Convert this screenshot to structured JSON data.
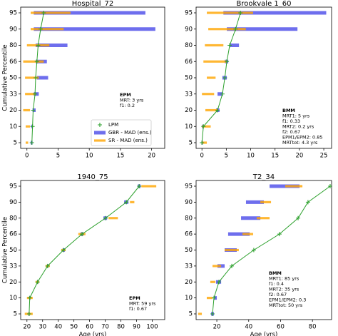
{
  "chart_data": [
    {
      "type": "percentile",
      "title": "Hospital_72",
      "ylabel": "Cumulative Percentile",
      "categories": [
        5,
        10,
        20,
        33,
        50,
        66,
        80,
        90,
        95
      ],
      "xlim": [
        -1,
        22.1
      ],
      "xticks": [
        0,
        5,
        10,
        15,
        20
      ],
      "series": [
        {
          "name": "LPM",
          "color": "#2ca02c",
          "values": [
            0.8,
            0.9,
            1.0,
            1.3,
            1.4,
            1.6,
            1.8,
            2.2,
            2.7
          ]
        },
        {
          "name": "GBR - MAD (ens.)",
          "color": "#4a4ae8",
          "low": [
            0.6,
            0.7,
            0.9,
            1.1,
            1.6,
            1.4,
            1.4,
            1.1,
            1.1
          ],
          "high": [
            0.9,
            0.9,
            1.4,
            1.9,
            3.4,
            3.2,
            6.5,
            20.6,
            19.0
          ]
        },
        {
          "name": "SR - MAD (ens.)",
          "color": "#ffa500",
          "low": [
            -0.2,
            -0.2,
            -0.6,
            -0.3,
            -0.3,
            -0.6,
            0.0,
            0.6,
            0.6
          ],
          "high": [
            0.2,
            0.5,
            0.5,
            1.4,
            1.9,
            2.7,
            3.6,
            5.9,
            7.0
          ]
        }
      ],
      "annotation": [
        "EPM",
        "MRT: 3 yrs",
        "f1: 0.2"
      ],
      "legend": "center right"
    },
    {
      "type": "percentile",
      "title": "Brookvale 1_60",
      "categories": [
        5,
        10,
        20,
        33,
        50,
        66,
        80,
        90,
        95
      ],
      "xlim": [
        -1.2,
        26.6
      ],
      "xticks": [
        0,
        5,
        10,
        15,
        20,
        25
      ],
      "series": [
        {
          "color": "#2ca02c",
          "values": [
            0.0,
            0.3,
            3.2,
            4.2,
            4.7,
            5.1,
            5.7,
            6.9,
            7.9
          ]
        },
        {
          "color": "#4a4ae8",
          "low": [
            -0.1,
            0.0,
            2.9,
            3.2,
            4.2,
            4.7,
            5.7,
            5.1,
            4.4
          ],
          "high": [
            0.2,
            0.3,
            3.6,
            4.2,
            5.1,
            5.4,
            7.6,
            19.6,
            25.5
          ]
        },
        {
          "color": "#ffa500",
          "low": [
            0.0,
            0.0,
            0.7,
            0.0,
            1.0,
            0.3,
            0.6,
            1.3,
            1.0
          ],
          "high": [
            1.0,
            1.8,
            3.2,
            2.5,
            2.8,
            5.1,
            4.4,
            9.0,
            10.5
          ]
        }
      ],
      "annotation": [
        "BMM",
        "MRT1: 5 yrs",
        "f1: 0.33",
        "MRT2: 0.2 yrs",
        "f2: 0.67",
        "EPM1/EPM2: 0.85",
        "MRTtot: 4.3 yrs"
      ]
    },
    {
      "type": "percentile",
      "title": "1940_75",
      "ylabel": "Cumulative Percentile",
      "xlabel": "Age (yrs)",
      "categories": [
        5,
        10,
        20,
        33,
        50,
        66,
        80,
        90,
        95
      ],
      "xlim": [
        16,
        108
      ],
      "xticks": [
        20,
        30,
        40,
        50,
        60,
        70,
        80,
        90,
        100
      ],
      "series": [
        {
          "color": "#2ca02c",
          "values": [
            21.4,
            21.8,
            26.8,
            33.2,
            43.3,
            55.2,
            70.2,
            83.5,
            91.7
          ]
        },
        {
          "color": "#4a4ae8",
          "low": [
            20.9,
            21.4,
            26.4,
            32.8,
            42.8,
            54.2,
            68.9,
            82.1,
            90.8
          ],
          "high": [
            21.8,
            22.3,
            27.3,
            33.7,
            44.2,
            56.1,
            71.2,
            84.8,
            92.6
          ]
        },
        {
          "color": "#ffa500",
          "low": [
            18.6,
            20.0,
            25.5,
            31.9,
            41.9,
            52.8,
            72.1,
            85.8,
            93.1
          ],
          "high": [
            23.7,
            23.7,
            27.8,
            34.6,
            44.7,
            57.4,
            78.1,
            88.6,
            102.6
          ]
        }
      ],
      "annotation": [
        "EPM",
        "MRT: 59 yrs",
        "f1: 0.67"
      ]
    },
    {
      "type": "percentile",
      "title": "T2_34",
      "xlabel": "Age (yrs)",
      "categories": [
        5,
        10,
        20,
        33,
        50,
        66,
        80,
        90,
        95
      ],
      "xlim": [
        7,
        92
      ],
      "xticks": [
        20,
        40,
        60,
        80
      ],
      "series": [
        {
          "color": "#2ca02c",
          "values": [
            17.3,
            18.2,
            21.3,
            29.4,
            43.2,
            59.3,
            71.0,
            77.2,
            91.1
          ]
        },
        {
          "color": "#4a4ae8",
          "low": [
            16.4,
            18.2,
            19.5,
            20.4,
            24.9,
            27.1,
            35.2,
            38.3,
            53.1
          ],
          "high": [
            18.2,
            20.0,
            22.7,
            24.9,
            32.5,
            40.6,
            47.3,
            49.5,
            71.9
          ]
        },
        {
          "color": "#ffa500",
          "low": [
            8.3,
            13.7,
            15.9,
            17.3,
            24.9,
            36.1,
            45.0,
            47.3,
            62.9
          ],
          "high": [
            10.6,
            17.3,
            19.1,
            22.7,
            33.8,
            42.8,
            53.1,
            54.0,
            73.7
          ]
        }
      ],
      "annotation": [
        "BMM",
        "MRT1: 85 yrs",
        "f1: 0.4",
        "MRT2: 35 yrs",
        "f2: 0.67",
        "EPM1/EPM2: 0.3",
        "MRTtot: 50 yrs"
      ]
    }
  ]
}
